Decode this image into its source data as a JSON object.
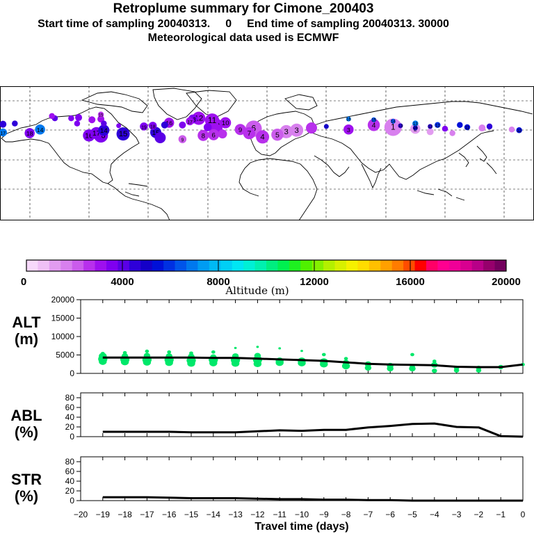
{
  "header": {
    "title": "Retroplume summary for Cimone_200403",
    "start_label": "Start time of sampling 20040313.",
    "start_value": "0",
    "end_label": "End time of sampling 20040313. 30000",
    "met_label": "Meteorological data used is ECMWF"
  },
  "map": {
    "type": "map",
    "plume_points": [
      {
        "lon": -83,
        "lat": 36,
        "alt": 3500,
        "size": 5,
        "label": "19"
      },
      {
        "lon": -77,
        "lat": 37,
        "alt": 3800,
        "size": 5,
        "label": "18"
      },
      {
        "lon": -69,
        "lat": 38,
        "alt": 4300,
        "size": 4,
        "label": ""
      },
      {
        "lon": -66,
        "lat": 41,
        "alt": 3200,
        "size": 7,
        "label": "16"
      },
      {
        "lon": -57,
        "lat": 38,
        "alt": 3800,
        "size": 4,
        "label": ""
      },
      {
        "lon": -52,
        "lat": 43,
        "alt": 3000,
        "size": 5,
        "label": "17"
      },
      {
        "lon": -50,
        "lat": 46,
        "alt": 3500,
        "size": 6,
        "label": "13"
      },
      {
        "lon": -46,
        "lat": 47,
        "alt": 3100,
        "size": 10,
        "label": "12"
      },
      {
        "lon": -37,
        "lat": 44,
        "alt": 3200,
        "size": 11,
        "label": "11"
      },
      {
        "lon": -35,
        "lat": 37,
        "alt": 3000,
        "size": 12,
        "label": "10"
      },
      {
        "lon": -28,
        "lat": 41,
        "alt": 2900,
        "size": 8,
        "label": "10"
      },
      {
        "lon": -18,
        "lat": 32,
        "alt": 2600,
        "size": 8,
        "label": "9"
      },
      {
        "lon": -12,
        "lat": 27,
        "alt": 2500,
        "size": 9,
        "label": "7"
      },
      {
        "lon": -9,
        "lat": 33,
        "alt": 2200,
        "size": 13,
        "label": "6"
      },
      {
        "lon": -3,
        "lat": 22,
        "alt": 2400,
        "size": 10,
        "label": "4"
      },
      {
        "lon": 7,
        "lat": 25,
        "alt": 2000,
        "size": 9,
        "label": "5"
      },
      {
        "lon": 13,
        "lat": 29,
        "alt": 1800,
        "size": 10,
        "label": "3"
      },
      {
        "lon": 20,
        "lat": 31,
        "alt": 1700,
        "size": 10,
        "label": "3"
      },
      {
        "lon": 30,
        "lat": 34,
        "alt": 2600,
        "size": 8,
        "label": ""
      },
      {
        "lon": 55,
        "lat": 32,
        "alt": 2900,
        "size": 7,
        "label": "3"
      },
      {
        "lon": 72,
        "lat": 38,
        "alt": 2800,
        "size": 9,
        "label": "4"
      },
      {
        "lon": 85,
        "lat": 35,
        "alt": 1800,
        "size": 14,
        "label": "1"
      },
      {
        "lon": 100,
        "lat": 33,
        "alt": 1400,
        "size": 7,
        "label": "2"
      },
      {
        "lon": 110,
        "lat": 29,
        "alt": 1300,
        "size": 4,
        "label": ""
      },
      {
        "lon": 125,
        "lat": 27,
        "alt": 1500,
        "size": 3,
        "label": ""
      },
      {
        "lon": 145,
        "lat": 34,
        "alt": 1700,
        "size": 4,
        "label": ""
      },
      {
        "lon": 165,
        "lat": 32,
        "alt": 1600,
        "size": 3,
        "label": ""
      },
      {
        "lon": -128,
        "lat": 40,
        "alt": 3600,
        "size": 3,
        "label": ""
      },
      {
        "lon": -120,
        "lat": 24,
        "alt": 3500,
        "size": 9,
        "label": "16"
      },
      {
        "lon": -112,
        "lat": 24,
        "alt": 3400,
        "size": 11,
        "label": "16"
      },
      {
        "lon": -115,
        "lat": 27,
        "alt": 3400,
        "size": 9,
        "label": "17"
      },
      {
        "lon": -110,
        "lat": 31,
        "alt": 4400,
        "size": 8,
        "label": "14"
      },
      {
        "lon": -97,
        "lat": 26,
        "alt": 4300,
        "size": 10,
        "label": "15"
      },
      {
        "lon": -75,
        "lat": 28,
        "alt": 4700,
        "size": 8,
        "label": "15"
      },
      {
        "lon": -72,
        "lat": 21,
        "alt": 3900,
        "size": 8,
        "label": ""
      },
      {
        "lon": -57,
        "lat": 19,
        "alt": 2000,
        "size": 5,
        "label": "9"
      },
      {
        "lon": -43,
        "lat": 24,
        "alt": 2600,
        "size": 8,
        "label": "8"
      },
      {
        "lon": -36,
        "lat": 25,
        "alt": 2400,
        "size": 8,
        "label": "6"
      },
      {
        "lon": -34,
        "lat": 31,
        "alt": 2900,
        "size": 9,
        "label": ""
      },
      {
        "lon": -30,
        "lat": 26,
        "alt": 2700,
        "size": 6,
        "label": ""
      },
      {
        "lon": -40,
        "lat": 35,
        "alt": 3500,
        "size": 5,
        "label": ""
      },
      {
        "lon": -178,
        "lat": 39,
        "alt": 4700,
        "size": 4,
        "label": ""
      },
      {
        "lon": -170,
        "lat": 40,
        "alt": 4400,
        "size": 3,
        "label": ""
      },
      {
        "lon": -178,
        "lat": 28,
        "alt": 6800,
        "size": 5,
        "label": "17"
      },
      {
        "lon": -153,
        "lat": 32,
        "alt": 6900,
        "size": 7,
        "label": "14"
      },
      {
        "lon": -160,
        "lat": 27,
        "alt": 3600,
        "size": 7,
        "label": "18"
      },
      {
        "lon": -143,
        "lat": 47,
        "alt": 4200,
        "size": 3,
        "label": ""
      },
      {
        "lon": -132,
        "lat": 47,
        "alt": 3400,
        "size": 3,
        "label": ""
      },
      {
        "lon": -118,
        "lat": 45,
        "alt": 3000,
        "size": 4,
        "label": ""
      },
      {
        "lon": -112,
        "lat": 52,
        "alt": 2800,
        "size": 3,
        "label": "15"
      },
      {
        "lon": -112,
        "lat": 46,
        "alt": 2900,
        "size": 4,
        "label": ""
      },
      {
        "lon": -145,
        "lat": 50,
        "alt": 3300,
        "size": 3,
        "label": ""
      },
      {
        "lon": -100,
        "lat": 37,
        "alt": 3500,
        "size": 2,
        "label": ""
      },
      {
        "lon": -127,
        "lat": 48,
        "alt": 3700,
        "size": 4,
        "label": ""
      },
      {
        "lon": -110,
        "lat": 40,
        "alt": 4100,
        "size": 3,
        "label": ""
      },
      {
        "lon": 55,
        "lat": 46,
        "alt": 7000,
        "size": 2,
        "label": "16"
      },
      {
        "lon": 72,
        "lat": 45,
        "alt": 6400,
        "size": 2,
        "label": "15"
      },
      {
        "lon": 85,
        "lat": 43,
        "alt": 6600,
        "size": 2,
        "label": "14"
      },
      {
        "lon": 100,
        "lat": 40,
        "alt": 7000,
        "size": 3,
        "label": "13"
      },
      {
        "lon": 115,
        "lat": 38,
        "alt": 5800,
        "size": 3,
        "label": "12"
      },
      {
        "lon": 130,
        "lat": 38,
        "alt": 5300,
        "size": 3,
        "label": ""
      },
      {
        "lon": 135,
        "lat": 35,
        "alt": 5400,
        "size": 3,
        "label": "11"
      },
      {
        "lon": 150,
        "lat": 36,
        "alt": 4300,
        "size": 3,
        "label": ""
      },
      {
        "lon": 170,
        "lat": 31,
        "alt": 5300,
        "size": 3,
        "label": "12"
      },
      {
        "lon": 120,
        "lat": 33,
        "alt": 3800,
        "size": 3,
        "label": ""
      },
      {
        "lon": 40,
        "lat": 36,
        "alt": 4900,
        "size": 2,
        "label": ""
      },
      {
        "lon": 110,
        "lat": 36,
        "alt": 4300,
        "size": 2,
        "label": "13"
      },
      {
        "lon": 90,
        "lat": 37,
        "alt": 4700,
        "size": 2,
        "label": "13"
      },
      {
        "lon": 100,
        "lat": 34,
        "alt": 4800,
        "size": 2,
        "label": "16"
      }
    ]
  },
  "colorbar": {
    "colors": [
      "#f7d9fb",
      "#efc0f6",
      "#e29cf0",
      "#d880ee",
      "#cb5cec",
      "#b830ec",
      "#9e10ee",
      "#7f00f0",
      "#5a00e6",
      "#2e00d9",
      "#1400c8",
      "#0010d8",
      "#0030e2",
      "#0054ea",
      "#0078ee",
      "#009cf2",
      "#00b9f4",
      "#00cff6",
      "#00e6f4",
      "#00f0d6",
      "#00f0b0",
      "#00ee80",
      "#00f050",
      "#1ef020",
      "#50f000",
      "#84f000",
      "#b4f000",
      "#d8f000",
      "#f6f000",
      "#ffdc00",
      "#ffc000",
      "#ffa000",
      "#ff7c00",
      "#ff4c00",
      "#ff0000",
      "#ff0066",
      "#ff0090",
      "#f00098",
      "#d80090",
      "#b80088",
      "#96006c",
      "#74005e"
    ],
    "ticks": [
      "0",
      "4000",
      "8000",
      "12000",
      "16000",
      "20000"
    ],
    "label": "Altitude (m)"
  },
  "chart_data": [
    {
      "type": "line",
      "panel_title": "ALT",
      "panel_unit": "(m)",
      "ylim": [
        0,
        20000
      ],
      "yticks": [
        "0",
        "5000",
        "10000",
        "15000",
        "20000"
      ],
      "x": [
        -19,
        -18,
        -17,
        -16,
        -15,
        -14,
        -13,
        -12,
        -11,
        -10,
        -9,
        -8,
        -7,
        -6,
        -5,
        -4,
        -3,
        -2,
        -1,
        0
      ],
      "series": [
        {
          "name": "median altitude",
          "values": [
            4300,
            4300,
            4300,
            4300,
            4300,
            4200,
            4200,
            4000,
            3800,
            3600,
            3400,
            3000,
            2600,
            2400,
            2300,
            2200,
            1800,
            1700,
            1700,
            2400
          ]
        }
      ],
      "scatter": {
        "name": "particle cluster altitudes",
        "color": "#00e86a",
        "x": [
          -19,
          -19,
          -19,
          -19,
          -18,
          -18,
          -18,
          -18,
          -17,
          -17,
          -17,
          -17,
          -16,
          -16,
          -16,
          -16,
          -15,
          -15,
          -15,
          -15,
          -14,
          -14,
          -14,
          -14,
          -13,
          -13,
          -13,
          -13,
          -12,
          -12,
          -12,
          -12,
          -11,
          -11,
          -11,
          -10,
          -10,
          -10,
          -9,
          -9,
          -9,
          -8,
          -8,
          -8,
          -7,
          -7,
          -6,
          -6,
          -5,
          -5,
          -5,
          -4,
          -4,
          -4,
          -3,
          -3,
          -2,
          -2,
          -1,
          0
        ],
        "y": [
          3200,
          3900,
          4700,
          5400,
          3100,
          3800,
          4700,
          5600,
          3000,
          3700,
          4800,
          6000,
          2900,
          3700,
          4700,
          5800,
          2700,
          3500,
          4600,
          5500,
          2800,
          3700,
          4400,
          5800,
          2700,
          3600,
          4700,
          6900,
          2600,
          3700,
          4800,
          7200,
          2900,
          3400,
          6800,
          2800,
          3400,
          6100,
          2500,
          3200,
          5100,
          2000,
          2900,
          4000,
          1500,
          2500,
          1300,
          2100,
          1300,
          1800,
          5100,
          700,
          2300,
          3300,
          800,
          1500,
          800,
          1500,
          1700,
          2400
        ],
        "s": [
          6,
          7,
          6,
          3,
          6,
          7,
          5,
          3,
          6,
          7,
          5,
          3,
          6,
          7,
          5,
          3,
          6,
          7,
          5,
          3,
          6,
          7,
          5,
          3,
          6,
          7,
          5,
          2,
          6,
          7,
          5,
          2,
          6,
          6,
          2,
          6,
          6,
          2,
          6,
          6,
          3,
          6,
          5,
          3,
          5,
          5,
          5,
          5,
          5,
          4,
          3,
          4,
          5,
          3,
          4,
          4,
          4,
          4,
          4,
          3
        ]
      }
    },
    {
      "type": "line",
      "panel_title": "ABL",
      "panel_unit": "(%)",
      "ylim": [
        0,
        90
      ],
      "yticks": [
        "0",
        "20",
        "40",
        "60",
        "80"
      ],
      "x": [
        -19,
        -18,
        -17,
        -16,
        -15,
        -14,
        -13,
        -12,
        -11,
        -10,
        -9,
        -8,
        -7,
        -6,
        -5,
        -4,
        -3,
        -2,
        -1,
        0
      ],
      "series": [
        {
          "name": "fraction in boundary layer",
          "values": [
            10,
            10,
            10,
            10,
            9,
            9,
            9,
            11,
            13,
            12,
            14,
            14,
            19,
            22,
            26,
            27,
            20,
            19,
            1,
            0
          ]
        }
      ]
    },
    {
      "type": "line",
      "panel_title": "STR",
      "panel_unit": "(%)",
      "ylim": [
        0,
        90
      ],
      "yticks": [
        "0",
        "20",
        "40",
        "60",
        "80"
      ],
      "x": [
        -19,
        -18,
        -17,
        -16,
        -15,
        -14,
        -13,
        -12,
        -11,
        -10,
        -9,
        -8,
        -7,
        -6,
        -5,
        -4,
        -3,
        -2,
        -1,
        0
      ],
      "series": [
        {
          "name": "fraction in stratosphere",
          "values": [
            7,
            7,
            7,
            6,
            5,
            5,
            5,
            4,
            3,
            3,
            2,
            2,
            1,
            1,
            0,
            0,
            0,
            0,
            0,
            0
          ]
        }
      ],
      "xticks": [
        "-20",
        "-19",
        "-18",
        "-17",
        "-16",
        "-15",
        "-14",
        "-13",
        "-12",
        "-11",
        "-10",
        "-9",
        "-8",
        "-7",
        "-6",
        "-5",
        "-4",
        "-3",
        "-2",
        "-1",
        "0"
      ],
      "xlabel": "Travel time (days)"
    }
  ]
}
